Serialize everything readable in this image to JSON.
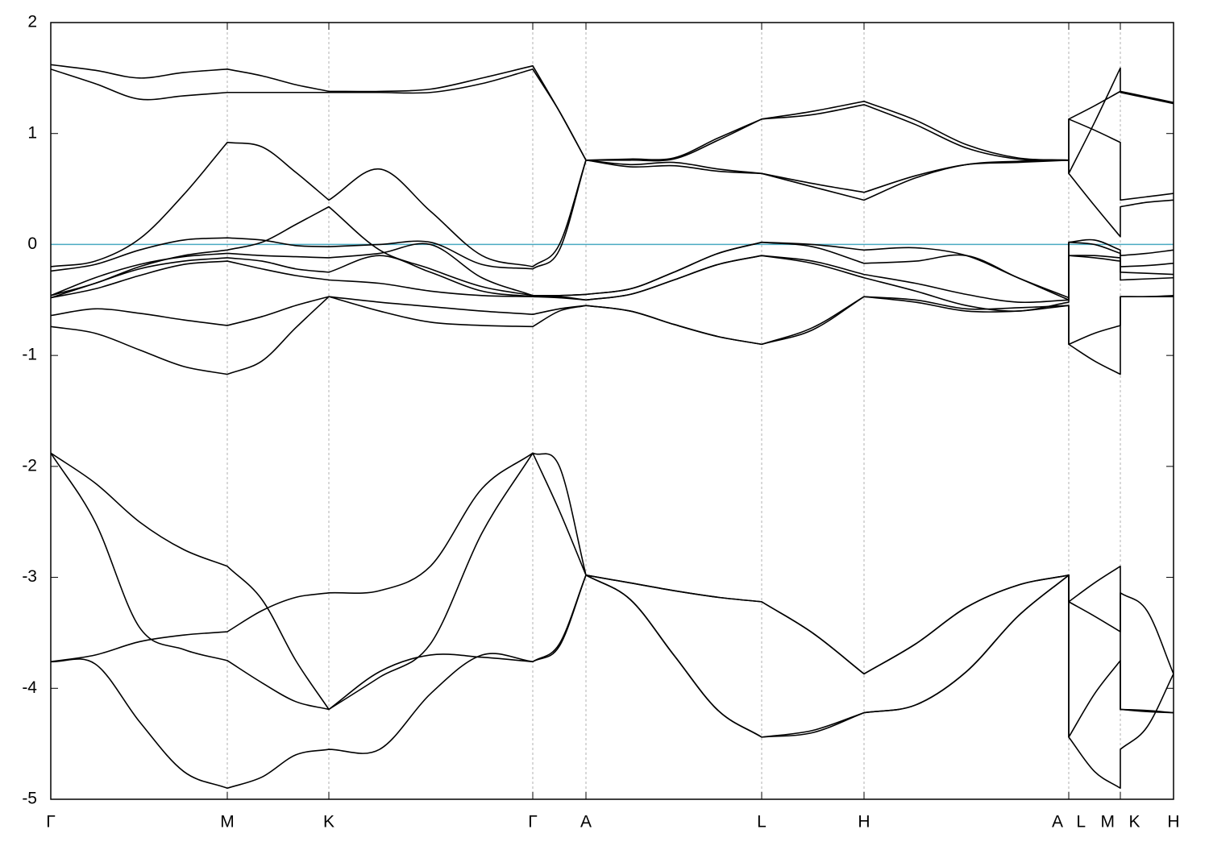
{
  "chart_data": {
    "type": "line",
    "x": [
      0,
      0.055,
      0.11,
      0.165,
      0.219,
      0.262,
      0.304,
      0.345,
      0.408,
      0.471,
      0.535,
      0.598,
      0.631,
      0.664,
      0.719,
      0.773,
      0.828,
      0.882,
      0.945,
      1.009,
      1.073,
      1.136,
      1.2,
      1.263,
      1.263,
      1.295,
      1.327,
      1.327,
      1.36,
      1.393
    ],
    "xlim": [
      0,
      1.393
    ],
    "xticks": [
      {
        "value": 0,
        "label": "Γ"
      },
      {
        "value": 0.219,
        "label": "M"
      },
      {
        "value": 0.345,
        "label": "K"
      },
      {
        "value": 0.598,
        "label": "Γ"
      },
      {
        "value": 0.664,
        "label": "A"
      },
      {
        "value": 0.882,
        "label": "L"
      },
      {
        "value": 1.009,
        "label": "H"
      },
      {
        "value": 1.263,
        "label": "A   L"
      },
      {
        "value": 1.327,
        "label": "M   K"
      },
      {
        "value": 1.393,
        "label": "H"
      }
    ],
    "ylim": [
      -5,
      2
    ],
    "yticks": [
      -5,
      -4,
      -3,
      -2,
      -1,
      0,
      1,
      2
    ],
    "xgrid": true,
    "reference_line": {
      "value": 0,
      "color": "#4aaac2"
    },
    "series": [
      {
        "color": "#000000",
        "values": [
          -1.88,
          -2.15,
          -2.5,
          -2.75,
          -2.9,
          -3.2,
          -3.75,
          -4.19,
          -3.9,
          -3.6,
          -2.6,
          -1.88,
          -2.4,
          -2.98,
          -3.05,
          -3.12,
          -3.18,
          -3.22,
          -3.5,
          -3.87,
          -3.6,
          -3.27,
          -3.07,
          -2.98,
          -3.22,
          -3.35,
          -3.49,
          -3.14,
          -3.3,
          -3.87
        ]
      },
      {
        "color": "#000000",
        "values": [
          -1.88,
          -2.5,
          -3.45,
          -3.65,
          -3.75,
          -3.95,
          -4.12,
          -4.19,
          -3.85,
          -3.7,
          -3.72,
          -3.76,
          -3.6,
          -2.98,
          -3.2,
          -3.7,
          -4.2,
          -4.44,
          -4.38,
          -4.22,
          -4.15,
          -3.85,
          -3.35,
          -2.98,
          -4.44,
          -4.75,
          -4.9,
          -4.55,
          -4.35,
          -3.87
        ]
      },
      {
        "color": "#000000",
        "values": [
          -3.76,
          -3.7,
          -3.58,
          -3.52,
          -3.49,
          -3.3,
          -3.18,
          -3.14,
          -3.12,
          -2.9,
          -2.2,
          -1.88,
          -2.0,
          -2.98,
          -3.05,
          -3.12,
          -3.18,
          -3.22,
          -3.5,
          -3.87,
          -3.6,
          -3.27,
          -3.07,
          -2.98,
          -3.22,
          -3.05,
          -2.9,
          -4.19,
          -4.2,
          -4.22
        ]
      },
      {
        "color": "#000000",
        "values": [
          -3.76,
          -3.78,
          -4.3,
          -4.75,
          -4.9,
          -4.8,
          -4.6,
          -4.55,
          -4.55,
          -4.05,
          -3.7,
          -3.76,
          -3.62,
          -2.98,
          -3.2,
          -3.7,
          -4.2,
          -4.44,
          -4.4,
          -4.22,
          -4.15,
          -3.85,
          -3.35,
          -2.98,
          -4.44,
          -4.05,
          -3.75,
          -4.19,
          -4.21,
          -4.22
        ]
      },
      {
        "color": "#000000",
        "values": [
          1.62,
          1.57,
          1.5,
          1.55,
          1.58,
          1.52,
          1.44,
          1.38,
          1.38,
          1.4,
          1.5,
          1.61,
          1.2,
          0.76,
          0.77,
          0.78,
          0.96,
          1.13,
          1.2,
          1.29,
          1.12,
          0.9,
          0.78,
          0.76,
          1.13,
          1.25,
          1.38,
          1.38,
          1.33,
          1.28
        ]
      },
      {
        "color": "#000000",
        "values": [
          1.58,
          1.45,
          1.31,
          1.34,
          1.37,
          1.37,
          1.37,
          1.37,
          1.37,
          1.37,
          1.45,
          1.58,
          1.2,
          0.76,
          0.76,
          0.77,
          0.94,
          1.13,
          1.17,
          1.26,
          1.08,
          0.87,
          0.77,
          0.76,
          1.13,
          1.03,
          0.92,
          0.4,
          0.43,
          0.46
        ]
      },
      {
        "color": "#000000",
        "values": [
          -0.2,
          -0.15,
          0.05,
          0.45,
          0.92,
          0.88,
          0.65,
          0.4,
          0.68,
          0.3,
          -0.1,
          -0.2,
          0.0,
          0.76,
          0.72,
          0.74,
          0.68,
          0.64,
          0.55,
          0.47,
          0.62,
          0.72,
          0.74,
          0.76,
          0.64,
          1.1,
          1.59,
          1.37,
          1.32,
          1.27
        ]
      },
      {
        "color": "#000000",
        "values": [
          -0.24,
          -0.18,
          -0.05,
          0.04,
          0.06,
          0.04,
          -0.01,
          -0.02,
          0.0,
          0.02,
          -0.18,
          -0.22,
          -0.05,
          0.76,
          0.7,
          0.71,
          0.66,
          0.64,
          0.52,
          0.4,
          0.6,
          0.72,
          0.75,
          0.76,
          0.64,
          0.35,
          0.07,
          0.34,
          0.38,
          0.4
        ]
      },
      {
        "color": "#000000",
        "values": [
          -0.46,
          -0.35,
          -0.2,
          -0.1,
          -0.05,
          0.02,
          0.18,
          0.34,
          -0.05,
          -0.22,
          -0.38,
          -0.46,
          -0.46,
          -0.45,
          -0.4,
          -0.25,
          -0.08,
          0.02,
          0.0,
          -0.05,
          -0.03,
          -0.1,
          -0.3,
          -0.48,
          0.02,
          0.04,
          -0.05,
          -0.1,
          -0.08,
          -0.05
        ]
      },
      {
        "color": "#000000",
        "values": [
          -0.46,
          -0.3,
          -0.18,
          -0.11,
          -0.08,
          -0.1,
          -0.11,
          -0.12,
          -0.08,
          0.0,
          -0.3,
          -0.46,
          -0.46,
          -0.45,
          -0.4,
          -0.25,
          -0.08,
          0.02,
          -0.02,
          -0.17,
          -0.15,
          -0.1,
          -0.3,
          -0.5,
          0.02,
          0.0,
          -0.08,
          -0.2,
          -0.19,
          -0.17
        ]
      },
      {
        "color": "#000000",
        "values": [
          -0.48,
          -0.35,
          -0.22,
          -0.15,
          -0.12,
          -0.15,
          -0.22,
          -0.25,
          -0.1,
          -0.25,
          -0.42,
          -0.47,
          -0.47,
          -0.5,
          -0.45,
          -0.32,
          -0.18,
          -0.1,
          -0.15,
          -0.27,
          -0.35,
          -0.45,
          -0.52,
          -0.5,
          -0.1,
          -0.1,
          -0.12,
          -0.25,
          -0.26,
          -0.27
        ]
      },
      {
        "color": "#000000",
        "values": [
          -0.48,
          -0.4,
          -0.28,
          -0.18,
          -0.15,
          -0.22,
          -0.28,
          -0.32,
          -0.35,
          -0.42,
          -0.46,
          -0.47,
          -0.48,
          -0.5,
          -0.45,
          -0.32,
          -0.18,
          -0.1,
          -0.17,
          -0.3,
          -0.42,
          -0.55,
          -0.6,
          -0.52,
          -0.1,
          -0.12,
          -0.15,
          -0.32,
          -0.31,
          -0.3
        ]
      },
      {
        "color": "#000000",
        "values": [
          -0.64,
          -0.58,
          -0.62,
          -0.68,
          -0.73,
          -0.65,
          -0.55,
          -0.47,
          -0.52,
          -0.56,
          -0.6,
          -0.63,
          -0.58,
          -0.55,
          -0.6,
          -0.72,
          -0.83,
          -0.9,
          -0.75,
          -0.47,
          -0.52,
          -0.6,
          -0.6,
          -0.55,
          -0.9,
          -0.8,
          -0.73,
          -0.47,
          -0.47,
          -0.47
        ]
      },
      {
        "color": "#000000",
        "values": [
          -0.74,
          -0.8,
          -0.95,
          -1.1,
          -1.17,
          -1.05,
          -0.75,
          -0.47,
          -0.6,
          -0.7,
          -0.73,
          -0.74,
          -0.6,
          -0.55,
          -0.6,
          -0.72,
          -0.83,
          -0.9,
          -0.77,
          -0.47,
          -0.5,
          -0.58,
          -0.57,
          -0.55,
          -0.9,
          -1.05,
          -1.17,
          -0.47,
          -0.47,
          -0.46
        ]
      }
    ]
  }
}
